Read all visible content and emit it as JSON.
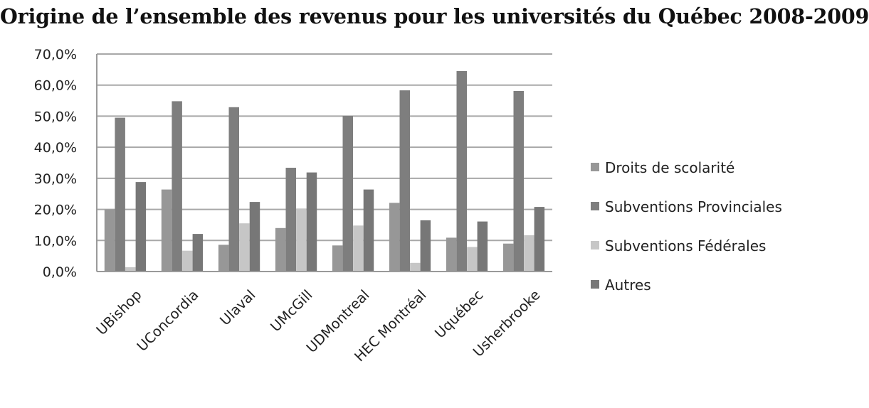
{
  "chart_data": {
    "type": "bar",
    "title": "Origine de l’ensemble des revenus pour les universités du Québec 2008-2009",
    "xlabel": "",
    "ylabel": "",
    "ylim": [
      0,
      70
    ],
    "y_ticks": [
      "0,0%",
      "10,0%",
      "20,0%",
      "30,0%",
      "40,0%",
      "50,0%",
      "60,0%",
      "70,0%"
    ],
    "categories": [
      "UBishop",
      "UConcordia",
      "Ulaval",
      "UMcGill",
      "UDMontreal",
      "HEC Montréal",
      "Uquébec",
      "Usherbrooke"
    ],
    "series": [
      {
        "name": "Droits de scolarité",
        "color": "#979797",
        "values": [
          20.0,
          26.4,
          8.6,
          14.0,
          8.4,
          22.1,
          10.9,
          9.0
        ]
      },
      {
        "name": "Subventions Provinciales",
        "color": "#7e7e7e",
        "values": [
          49.5,
          54.8,
          52.9,
          33.4,
          50.1,
          58.3,
          64.5,
          58.1
        ]
      },
      {
        "name": "Subventions Fédérales",
        "color": "#c6c6c6",
        "values": [
          1.4,
          6.7,
          15.5,
          20.3,
          14.8,
          2.8,
          7.9,
          11.7
        ]
      },
      {
        "name": "Autres",
        "color": "#777777",
        "values": [
          28.8,
          12.1,
          22.4,
          31.9,
          26.4,
          16.5,
          16.1,
          20.8
        ]
      }
    ],
    "grid": true,
    "legend_position": "right"
  }
}
